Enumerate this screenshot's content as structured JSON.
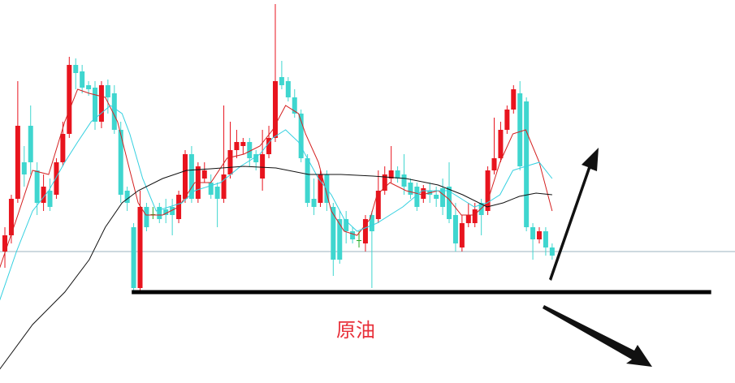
{
  "chart_data": {
    "type": "candlestick",
    "annotation": "原油",
    "annotation_color": "#e8303a",
    "up_color": "#e8141e",
    "down_color": "#3fd6cf",
    "flat_color": "#22aa22",
    "xlim": [
      -0.76,
      113.4
    ],
    "ylim": [
      0,
      472
    ],
    "open": [
      162,
      182,
      227,
      272,
      317,
      262,
      222,
      237,
      232,
      272,
      307,
      392,
      384,
      367,
      364,
      322,
      367,
      357,
      312,
      237,
      192,
      117,
      217,
      208,
      217,
      214,
      217,
      202,
      227,
      282,
      227,
      252,
      247,
      242,
      227,
      257,
      287,
      292,
      297,
      282,
      252,
      282,
      302,
      377,
      372,
      352,
      332,
      277,
      227,
      222,
      257,
      217,
      202,
      202,
      187,
      176,
      172,
      207,
      202,
      237,
      252,
      262,
      257,
      247,
      242,
      227,
      237,
      232,
      240,
      242,
      207,
      167,
      197,
      197,
      222,
      212,
      262,
      277,
      312,
      337,
      357,
      347,
      192,
      177,
      187,
      167
    ],
    "high": [
      192,
      232,
      372,
      292,
      342,
      272,
      257,
      252,
      277,
      322,
      402,
      400,
      392,
      372,
      372,
      372,
      374,
      367,
      322,
      242,
      197,
      237,
      222,
      217,
      222,
      227,
      227,
      237,
      287,
      292,
      272,
      272,
      257,
      247,
      342,
      322,
      312,
      302,
      302,
      287,
      312,
      317,
      467,
      397,
      377,
      362,
      337,
      282,
      252,
      262,
      262,
      222,
      212,
      212,
      192,
      187,
      207,
      212,
      262,
      267,
      292,
      267,
      282,
      252,
      247,
      244,
      247,
      242,
      252,
      272,
      222,
      207,
      222,
      222,
      227,
      267,
      327,
      322,
      342,
      367,
      372,
      352,
      197,
      192,
      192,
      172
    ],
    "low": [
      142,
      172,
      222,
      242,
      257,
      207,
      212,
      212,
      227,
      267,
      302,
      362,
      357,
      354,
      312,
      314,
      332,
      307,
      222,
      212,
      114,
      114,
      187,
      202,
      197,
      197,
      182,
      197,
      222,
      222,
      222,
      247,
      227,
      192,
      222,
      252,
      277,
      282,
      267,
      262,
      237,
      277,
      297,
      362,
      347,
      327,
      272,
      217,
      207,
      217,
      212,
      132,
      147,
      172,
      172,
      167,
      162,
      117,
      197,
      232,
      247,
      247,
      232,
      227,
      212,
      222,
      222,
      217,
      207,
      197,
      162,
      162,
      192,
      192,
      182,
      207,
      257,
      272,
      307,
      332,
      262,
      187,
      152,
      172,
      157,
      152
    ],
    "close": [
      182,
      227,
      317,
      257,
      272,
      222,
      242,
      217,
      272,
      307,
      392,
      382,
      364,
      362,
      322,
      367,
      352,
      312,
      232,
      222,
      117,
      217,
      192,
      208,
      202,
      207,
      207,
      232,
      282,
      227,
      267,
      262,
      232,
      227,
      257,
      287,
      297,
      297,
      277,
      272,
      282,
      302,
      372,
      367,
      352,
      332,
      277,
      222,
      217,
      257,
      222,
      152,
      152,
      187,
      177,
      176,
      202,
      187,
      237,
      257,
      262,
      252,
      242,
      232,
      217,
      240,
      232,
      227,
      217,
      202,
      172,
      197,
      207,
      214,
      207,
      262,
      277,
      312,
      337,
      362,
      267,
      192,
      177,
      187,
      167,
      157
    ],
    "lines": [
      {
        "color": "#d42020",
        "x": [
          -0.8,
          1.8,
          4.3,
          6.8,
          9.3,
          11.3,
          13.1,
          15.6,
          17.5,
          19.4,
          20.7,
          21.9,
          24.5,
          27.0,
          29.5,
          32.0,
          34.5,
          37.1,
          39.6,
          41.6,
          43.6,
          45.6,
          46.7,
          48.7,
          50.7,
          52.7,
          54.7,
          56.7,
          57.8,
          59.8,
          62.3,
          64.8,
          67.3,
          68.9,
          70.9,
          72.9,
          74.9,
          76.9,
          78.9,
          80.9,
          83.0,
          85.0
        ],
        "values": [
          142,
          202,
          262,
          257,
          322,
          362,
          357,
          352,
          322,
          262,
          222,
          207,
          207,
          217,
          247,
          247,
          277,
          282,
          292,
          312,
          342,
          332,
          307,
          272,
          212,
          187,
          182,
          202,
          232,
          247,
          237,
          232,
          237,
          227,
          207,
          207,
          222,
          272,
          307,
          312,
          272,
          212
        ]
      },
      {
        "color": "#33d0e0",
        "x": [
          -0.8,
          1.8,
          4.3,
          6.8,
          9.3,
          11.3,
          13.4,
          16.4,
          18.2,
          19.4,
          21.4,
          23.5,
          25.5,
          27.5,
          29.5,
          31.5,
          33.5,
          36.6,
          39.6,
          41.6,
          43.6,
          45.6,
          48.7,
          50.7,
          52.7,
          54.7,
          57.8,
          59.8,
          61.8,
          64.8,
          68.9,
          70.9,
          72.9,
          74.9,
          76.9,
          78.9,
          80.9,
          83.0,
          85.0
        ],
        "values": [
          102,
          162,
          212,
          237,
          272,
          297,
          322,
          342,
          332,
          307,
          252,
          212,
          217,
          222,
          237,
          242,
          247,
          267,
          282,
          302,
          312,
          297,
          252,
          232,
          202,
          187,
          197,
          207,
          217,
          237,
          237,
          227,
          217,
          222,
          232,
          262,
          267,
          272,
          252
        ]
      },
      {
        "color": "#111111",
        "x": [
          -0.8,
          4.3,
          9.3,
          13.1,
          15.6,
          18.2,
          20.7,
          24.5,
          28.2,
          32.0,
          37.1,
          42.1,
          47.2,
          52.2,
          57.2,
          62.3,
          67.3,
          71.1,
          74.9,
          77.4,
          79.9,
          82.5,
          85.0
        ],
        "values": [
          17,
          72,
          112,
          152,
          192,
          222,
          237,
          252,
          262,
          264,
          267,
          265,
          257,
          257,
          255,
          252,
          244,
          232,
          217,
          222,
          230,
          234,
          232
        ]
      }
    ],
    "reference_line": {
      "value": 162,
      "color": "#7a9aaa"
    },
    "support_line": {
      "value": 112,
      "x": [
        19.7,
        109.7
      ],
      "color": "#000000"
    }
  }
}
